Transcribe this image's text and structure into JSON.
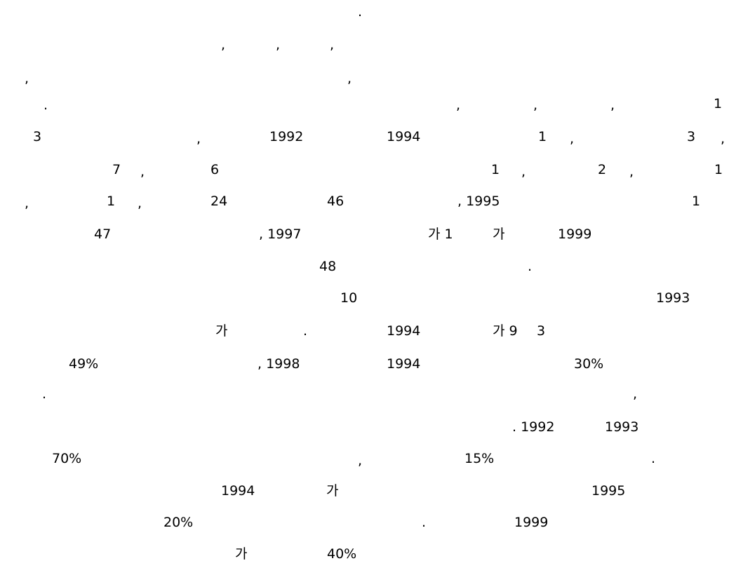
{
  "document": {
    "lines": [
      [
        ","
      ],
      [
        ",",
        ",",
        ","
      ],
      [
        ",",
        ","
      ],
      [
        ".",
        ",",
        ",",
        ",",
        "1"
      ],
      [
        "3",
        ",",
        "1992",
        "1994",
        "1",
        ",",
        "3",
        ","
      ],
      [
        "7",
        ",",
        "6",
        "1",
        ",",
        "2",
        ",",
        "1"
      ],
      [
        ",",
        "1",
        ",",
        "24",
        "46",
        ", 1995",
        "1"
      ],
      [
        "47",
        ", 1997",
        "가 1",
        "가",
        "1999"
      ],
      [
        "48",
        "."
      ],
      [
        "10",
        "1993"
      ],
      [
        "가",
        ".",
        "1994",
        "가 9",
        "3"
      ],
      [
        "49%",
        ", 1998",
        "1994",
        "30%"
      ],
      [
        ".",
        ","
      ],
      [
        ". 1992",
        "1993"
      ],
      [
        "70%",
        ",",
        "15%",
        "."
      ],
      [
        "1994",
        "가",
        "1995"
      ],
      [
        "20%",
        ".",
        "1999"
      ],
      [
        "가",
        "40%"
      ]
    ]
  }
}
